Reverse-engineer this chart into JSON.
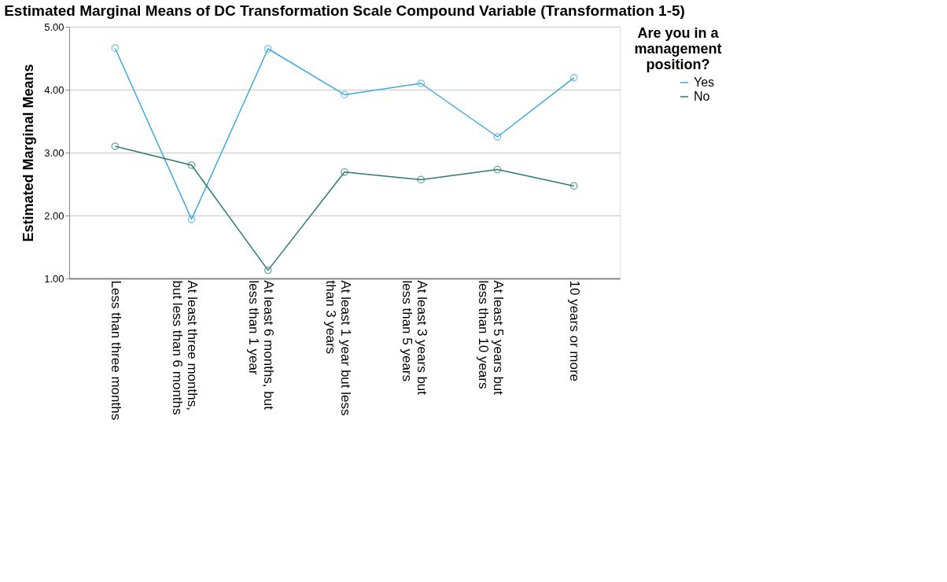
{
  "chart_data": {
    "type": "line",
    "title": "Estimated Marginal Means of DC Transformation Scale Compound Variable (Transformation 1-5)",
    "ylabel": "Estimated Marginal Means",
    "legend_title": "Are you in a management position?",
    "categories": [
      "Less than three months",
      "At least three months, but less than 6 months",
      "At least 6 months, but less than 1 year",
      "At least 1 year but less than 3 years",
      "At least 3 years but less than 5 years",
      "At least 5 years but less than 10 years",
      "10 years or more"
    ],
    "series": [
      {
        "name": "Yes",
        "color": "#3ea8e0",
        "values": [
          4.66,
          1.94,
          4.65,
          3.92,
          4.1,
          3.25,
          4.19
        ]
      },
      {
        "name": "No",
        "color": "#2b7a6f",
        "values": [
          3.1,
          2.8,
          1.13,
          2.69,
          2.57,
          2.73,
          2.47
        ]
      }
    ],
    "ylim": [
      1,
      5
    ],
    "yticks": [
      {
        "value": 1,
        "label": "1.00"
      },
      {
        "value": 2,
        "label": "2.00"
      },
      {
        "value": 3,
        "label": "3.00"
      },
      {
        "value": 4,
        "label": "4.00"
      },
      {
        "value": 5,
        "label": "5.00"
      }
    ],
    "grid": "y",
    "legend": "top right",
    "marker": "circle",
    "line_style": "solid"
  }
}
